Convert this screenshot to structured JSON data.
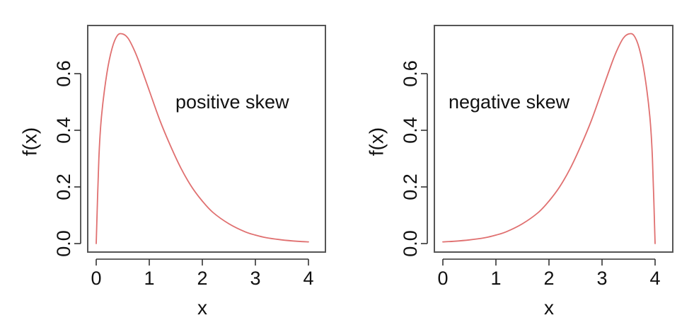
{
  "chart_data": [
    {
      "type": "line",
      "title": "",
      "xlabel": "x",
      "ylabel": "f(x)",
      "xlim": [
        0,
        4
      ],
      "ylim": [
        0,
        0.75
      ],
      "xticks": [
        "0",
        "1",
        "2",
        "3",
        "4"
      ],
      "yticks": [
        "0.0",
        "0.2",
        "0.4",
        "0.6"
      ],
      "annotation": "positive skew",
      "legend": "none",
      "grid": false,
      "line_color": "#e07070",
      "series": [
        {
          "x": [
            0,
            0.05,
            0.1,
            0.2,
            0.3,
            0.4,
            0.5,
            0.6,
            0.7,
            0.8,
            1.0,
            1.2,
            1.4,
            1.6,
            1.8,
            2.0,
            2.2,
            2.5,
            2.8,
            3.0,
            3.2,
            3.5,
            3.8,
            4.0
          ],
          "values": [
            0,
            0.3,
            0.45,
            0.6,
            0.69,
            0.735,
            0.74,
            0.725,
            0.69,
            0.645,
            0.54,
            0.435,
            0.345,
            0.265,
            0.2,
            0.15,
            0.11,
            0.07,
            0.042,
            0.03,
            0.021,
            0.013,
            0.008,
            0.006
          ]
        }
      ]
    },
    {
      "type": "line",
      "title": "",
      "xlabel": "x",
      "ylabel": "f(x)",
      "xlim": [
        0,
        4
      ],
      "ylim": [
        0,
        0.75
      ],
      "xticks": [
        "0",
        "1",
        "2",
        "3",
        "4"
      ],
      "yticks": [
        "0.0",
        "0.2",
        "0.4",
        "0.6"
      ],
      "annotation": "negative skew",
      "legend": "none",
      "grid": false,
      "line_color": "#e07070",
      "series": [
        {
          "x": [
            0,
            0.2,
            0.5,
            0.8,
            1.0,
            1.2,
            1.5,
            1.8,
            2.0,
            2.2,
            2.4,
            2.6,
            2.8,
            3.0,
            3.2,
            3.3,
            3.4,
            3.5,
            3.6,
            3.7,
            3.8,
            3.9,
            3.95,
            4.0
          ],
          "values": [
            0.006,
            0.008,
            0.013,
            0.021,
            0.03,
            0.042,
            0.07,
            0.11,
            0.15,
            0.2,
            0.265,
            0.345,
            0.435,
            0.54,
            0.645,
            0.69,
            0.725,
            0.74,
            0.735,
            0.69,
            0.6,
            0.45,
            0.3,
            0
          ]
        }
      ]
    }
  ]
}
